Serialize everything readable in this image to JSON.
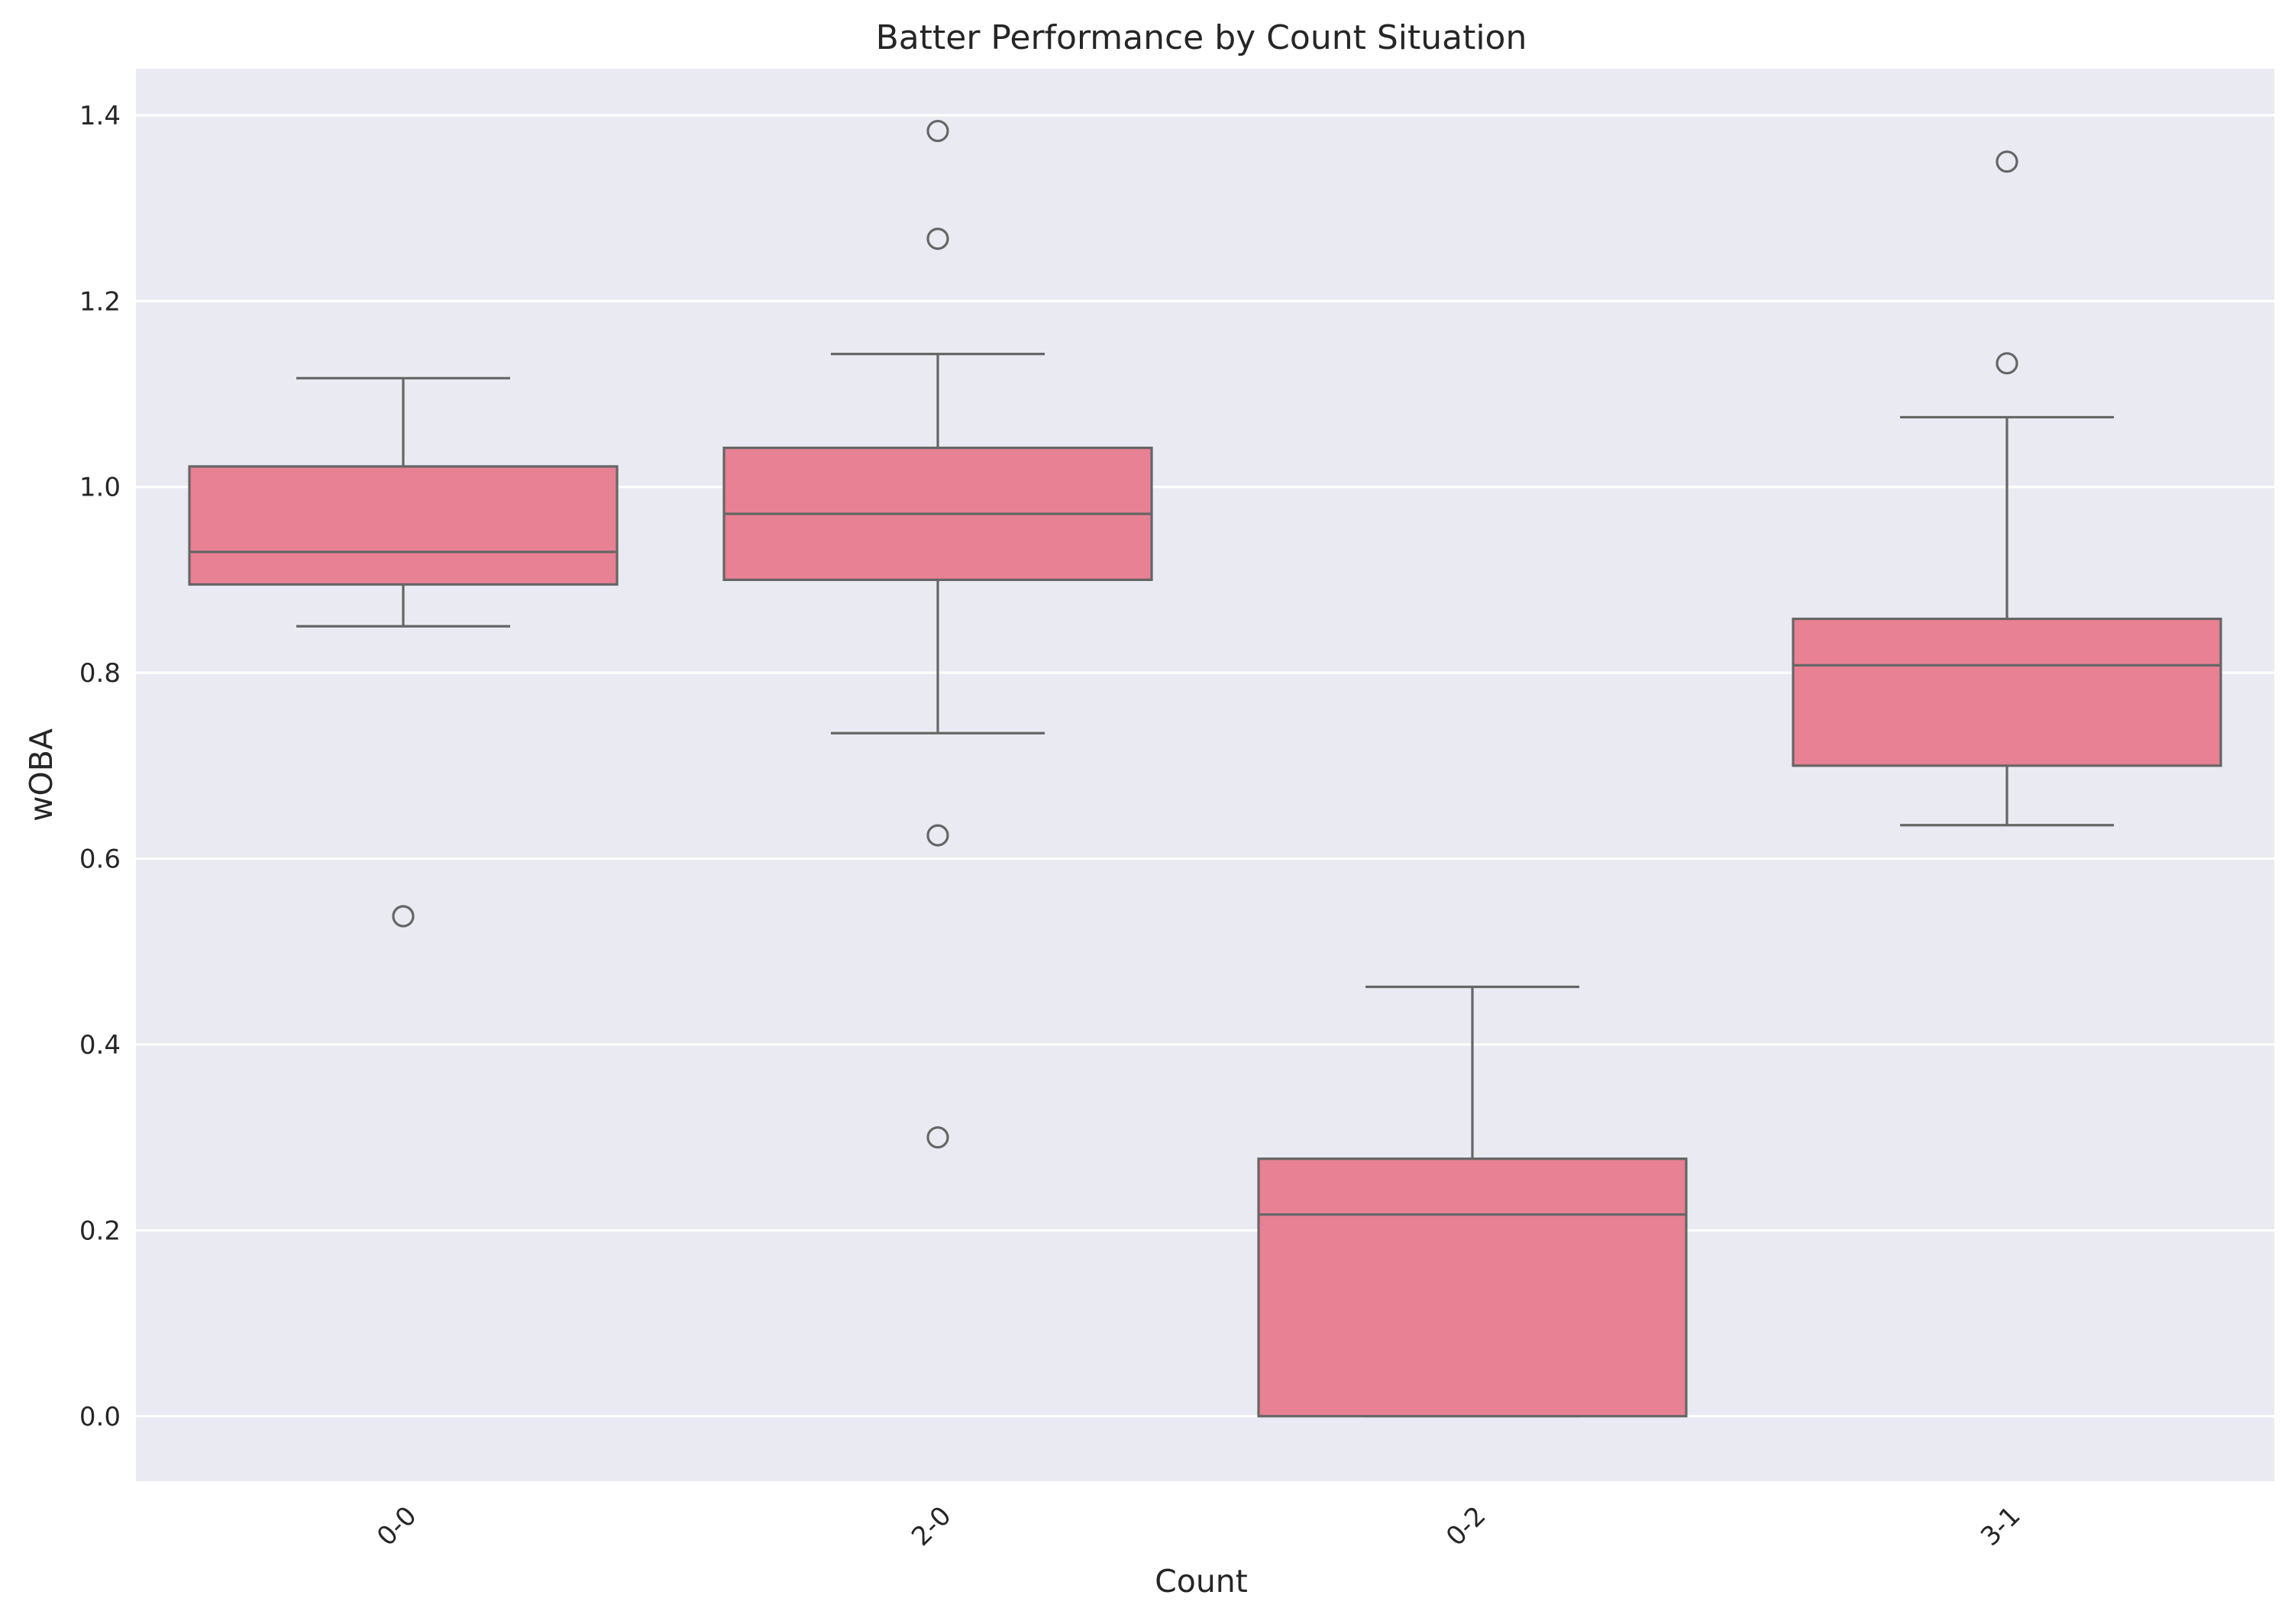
{
  "chart_data": {
    "type": "box",
    "title": "Batter Performance by Count Situation",
    "xlabel": "Count",
    "ylabel": "wOBA",
    "ylim": [
      -0.07,
      1.45
    ],
    "yticks": [
      0.0,
      0.2,
      0.4,
      0.6,
      0.8,
      1.0,
      1.2,
      1.4
    ],
    "ytick_labels": [
      "0.0",
      "0.2",
      "0.4",
      "0.6",
      "0.8",
      "1.0",
      "1.2",
      "1.4"
    ],
    "categories": [
      "0-0",
      "2-0",
      "0-2",
      "3-1"
    ],
    "grid": true,
    "colors": {
      "background": "#eaeaf2",
      "grid": "#ffffff",
      "box_fill": "#e88193",
      "line": "#666666"
    },
    "boxes": [
      {
        "category": "0-0",
        "whisker_low": 0.85,
        "q1": 0.895,
        "median": 0.93,
        "q3": 1.022,
        "whisker_high": 1.117,
        "outliers": [
          0.538
        ]
      },
      {
        "category": "2-0",
        "whisker_low": 0.735,
        "q1": 0.9,
        "median": 0.971,
        "q3": 1.042,
        "whisker_high": 1.143,
        "outliers": [
          1.383,
          1.267,
          0.625,
          0.3
        ]
      },
      {
        "category": "0-2",
        "whisker_low": 0.0,
        "q1": 0.0,
        "median": 0.217,
        "q3": 0.277,
        "whisker_high": 0.462,
        "outliers": []
      },
      {
        "category": "3-1",
        "whisker_low": 0.636,
        "q1": 0.7,
        "median": 0.808,
        "q3": 0.858,
        "whisker_high": 1.075,
        "outliers": [
          1.35,
          1.133
        ]
      }
    ]
  }
}
